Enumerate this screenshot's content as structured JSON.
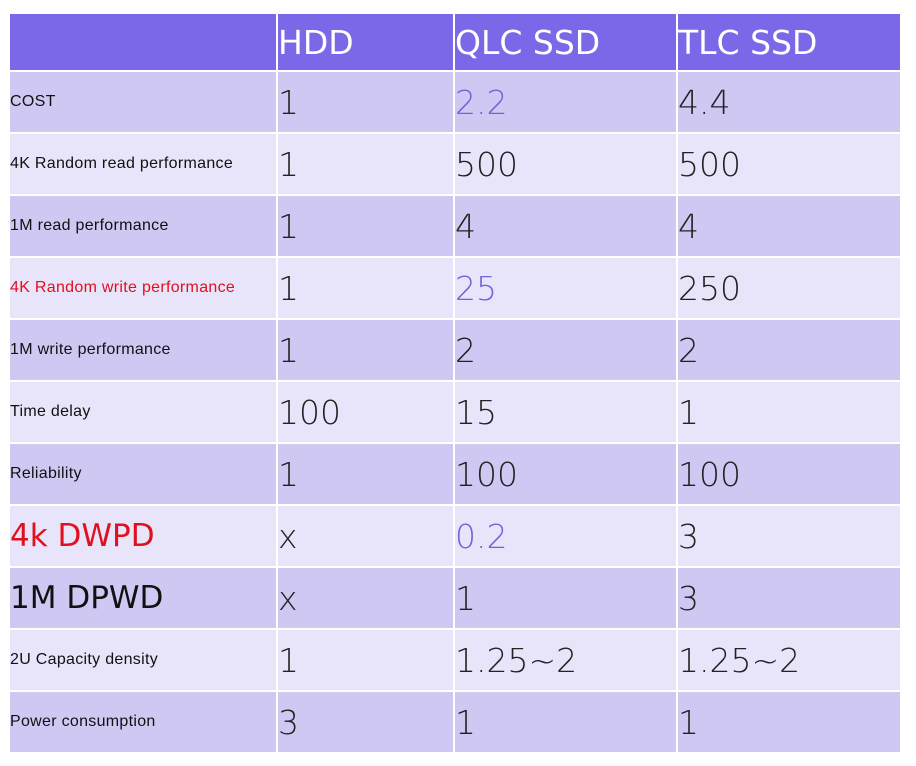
{
  "colors": {
    "header_bg": "#7a68e8",
    "row_dark": "#cfc8f3",
    "row_light": "#e8e4f9",
    "highlight_text": "#7065d6",
    "alert_text": "#e0101e"
  },
  "chart_data": {
    "type": "table",
    "columns": [
      "HDD",
      "QLC SSD",
      "TLC SSD"
    ],
    "rows": [
      {
        "label": "COST",
        "values": [
          "1",
          "2.2",
          "4.4"
        ]
      },
      {
        "label": "4K Random read performance",
        "values": [
          "1",
          "500",
          "500"
        ]
      },
      {
        "label": "1M read performance",
        "values": [
          "1",
          "4",
          "4"
        ]
      },
      {
        "label": "4K Random write performance",
        "values": [
          "1",
          "25",
          "250"
        ]
      },
      {
        "label": "1M write performance",
        "values": [
          "1",
          "2",
          "2"
        ]
      },
      {
        "label": "Time delay",
        "values": [
          "100",
          "15",
          "1"
        ]
      },
      {
        "label": "Reliability",
        "values": [
          "1",
          "100",
          "100"
        ]
      },
      {
        "label": "4k DWPD",
        "values": [
          "x",
          "0.2",
          "3"
        ]
      },
      {
        "label": "1M DPWD",
        "values": [
          "x",
          "1",
          "3"
        ]
      },
      {
        "label": "2U Capacity density",
        "values": [
          "1",
          "1.25~2",
          "1.25~2"
        ]
      },
      {
        "label": "Power consumption",
        "values": [
          "3",
          "1",
          "1"
        ]
      }
    ]
  }
}
